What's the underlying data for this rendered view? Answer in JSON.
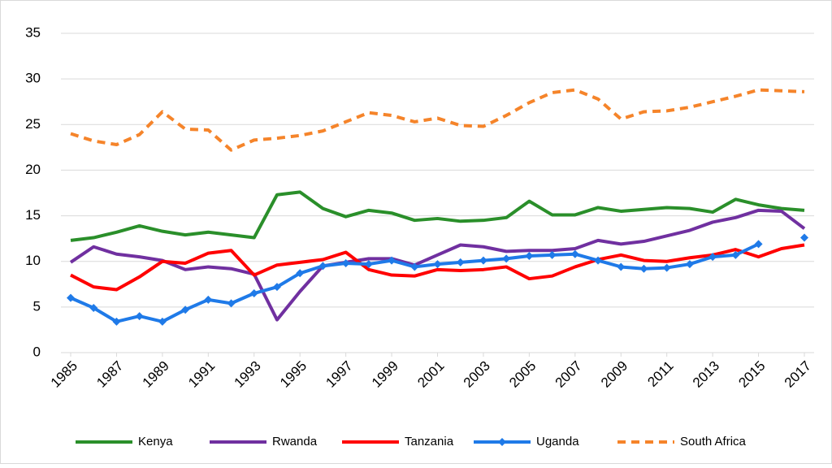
{
  "chart_data": {
    "type": "line",
    "x": [
      1985,
      1986,
      1987,
      1988,
      1989,
      1990,
      1991,
      1992,
      1993,
      1994,
      1995,
      1996,
      1997,
      1998,
      1999,
      2000,
      2001,
      2002,
      2003,
      2004,
      2005,
      2006,
      2007,
      2008,
      2009,
      2010,
      2011,
      2012,
      2013,
      2014,
      2015,
      2016,
      2017
    ],
    "xlim": [
      1985,
      2017
    ],
    "xticks": [
      1985,
      1987,
      1989,
      1991,
      1993,
      1995,
      1997,
      1999,
      2001,
      2003,
      2005,
      2007,
      2009,
      2011,
      2013,
      2015,
      2017
    ],
    "ylim": [
      0,
      35
    ],
    "yticks": [
      0,
      5,
      10,
      15,
      20,
      25,
      30,
      35
    ],
    "grid": true,
    "legend": "bottom",
    "series": [
      {
        "name": "Kenya",
        "color": "#2a8f2a",
        "dash": false,
        "marker": "none",
        "values": [
          12.3,
          12.6,
          13.2,
          13.9,
          13.3,
          12.9,
          13.2,
          12.9,
          12.6,
          17.3,
          17.6,
          15.8,
          14.9,
          15.6,
          15.3,
          14.5,
          14.7,
          14.4,
          14.5,
          14.8,
          16.6,
          15.1,
          15.1,
          15.9,
          15.5,
          15.7,
          15.9,
          15.8,
          15.4,
          16.8,
          16.2,
          15.8,
          15.6
        ]
      },
      {
        "name": "Rwanda",
        "color": "#7030a0",
        "dash": false,
        "marker": "none",
        "values": [
          9.9,
          11.6,
          10.8,
          10.5,
          10.1,
          9.1,
          9.4,
          9.2,
          8.6,
          3.6,
          6.7,
          9.5,
          9.9,
          10.3,
          10.3,
          9.6,
          10.7,
          11.8,
          11.6,
          11.1,
          11.2,
          11.2,
          11.4,
          12.3,
          11.9,
          12.2,
          12.8,
          13.4,
          14.3,
          14.8,
          15.6,
          15.5,
          13.6
        ]
      },
      {
        "name": "Tanzania",
        "color": "#ff0000",
        "dash": false,
        "marker": "none",
        "values": [
          8.5,
          7.2,
          6.9,
          8.3,
          10.0,
          9.8,
          10.9,
          11.2,
          8.5,
          9.6,
          9.9,
          10.2,
          11.0,
          9.1,
          8.5,
          8.4,
          9.1,
          9.0,
          9.1,
          9.4,
          8.1,
          8.4,
          9.4,
          10.2,
          10.7,
          10.1,
          10.0,
          10.4,
          10.7,
          11.3,
          10.5,
          11.4,
          11.8
        ]
      },
      {
        "name": "Uganda",
        "color": "#1f7ae8",
        "dash": false,
        "marker": "diamond",
        "values": [
          6.0,
          4.9,
          3.4,
          4.0,
          3.4,
          4.7,
          5.8,
          5.4,
          6.5,
          7.2,
          8.7,
          9.5,
          9.8,
          9.7,
          10.1,
          9.4,
          9.7,
          9.9,
          10.1,
          10.3,
          10.6,
          10.7,
          10.8,
          10.1,
          9.4,
          9.2,
          9.3,
          9.7,
          10.5,
          10.7,
          11.9,
          null,
          12.6
        ]
      },
      {
        "name": "South Africa",
        "color": "#f5842a",
        "dash": true,
        "marker": "none",
        "values": [
          24.0,
          23.2,
          22.8,
          23.9,
          26.4,
          24.5,
          24.4,
          22.2,
          23.3,
          23.5,
          23.8,
          24.3,
          25.3,
          26.3,
          26.0,
          25.3,
          25.7,
          24.9,
          24.8,
          26.0,
          27.4,
          28.5,
          28.8,
          27.8,
          25.6,
          26.4,
          26.5,
          26.9,
          27.5,
          28.1,
          28.8,
          28.7,
          28.6
        ]
      }
    ]
  }
}
